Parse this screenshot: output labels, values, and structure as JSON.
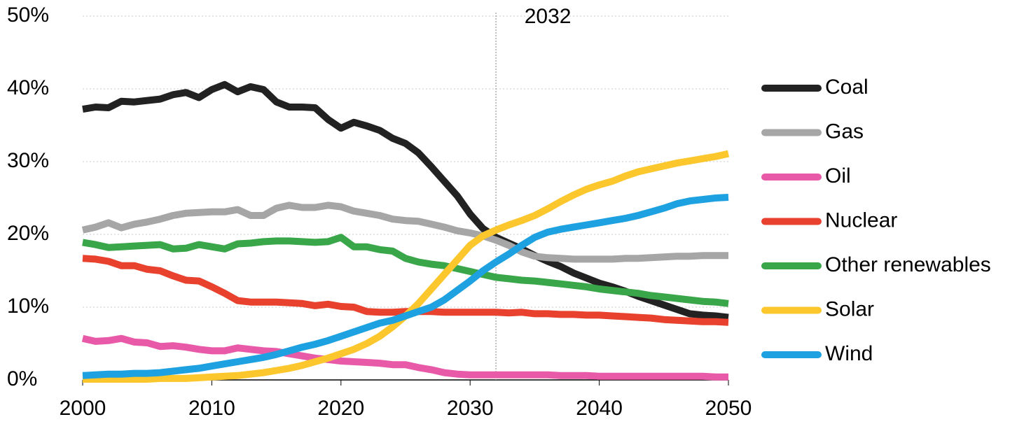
{
  "chart_data": {
    "type": "line",
    "x": [
      2000,
      2001,
      2002,
      2003,
      2004,
      2005,
      2006,
      2007,
      2008,
      2009,
      2010,
      2011,
      2012,
      2013,
      2014,
      2015,
      2016,
      2017,
      2018,
      2019,
      2020,
      2021,
      2022,
      2023,
      2024,
      2025,
      2026,
      2027,
      2028,
      2029,
      2030,
      2031,
      2032,
      2033,
      2034,
      2035,
      2036,
      2037,
      2038,
      2039,
      2040,
      2041,
      2042,
      2043,
      2044,
      2045,
      2046,
      2047,
      2048,
      2049,
      2050
    ],
    "series": [
      {
        "name": "Coal",
        "color": "#222222",
        "values": [
          37.2,
          37.5,
          37.4,
          38.3,
          38.2,
          38.4,
          38.6,
          39.2,
          39.5,
          38.8,
          39.9,
          40.6,
          39.6,
          40.3,
          39.9,
          38.2,
          37.5,
          37.5,
          37.4,
          35.8,
          34.6,
          35.4,
          34.9,
          34.3,
          33.2,
          32.5,
          31.2,
          29.3,
          27.3,
          25.3,
          22.8,
          20.8,
          19.6,
          18.8,
          18.0,
          17.1,
          16.3,
          15.6,
          14.7,
          14.0,
          13.3,
          12.8,
          12.2,
          11.5,
          10.9,
          10.3,
          9.7,
          9.1,
          8.9,
          8.8,
          8.6
        ]
      },
      {
        "name": "Gas",
        "color": "#a6a6a6",
        "values": [
          20.6,
          21.0,
          21.6,
          20.9,
          21.4,
          21.7,
          22.1,
          22.6,
          22.9,
          23.0,
          23.1,
          23.1,
          23.4,
          22.6,
          22.6,
          23.6,
          24.0,
          23.7,
          23.7,
          24.0,
          23.8,
          23.2,
          22.9,
          22.6,
          22.1,
          21.9,
          21.8,
          21.4,
          21.0,
          20.5,
          20.2,
          19.8,
          19.2,
          18.5,
          17.6,
          17.0,
          16.8,
          16.7,
          16.6,
          16.6,
          16.6,
          16.6,
          16.7,
          16.7,
          16.8,
          16.9,
          17.0,
          17.0,
          17.1,
          17.1,
          17.1
        ]
      },
      {
        "name": "Oil",
        "color": "#e85aa8",
        "values": [
          5.7,
          5.3,
          5.4,
          5.7,
          5.2,
          5.1,
          4.6,
          4.7,
          4.5,
          4.2,
          4.0,
          4.0,
          4.4,
          4.2,
          4.0,
          3.9,
          3.6,
          3.3,
          3.0,
          2.8,
          2.6,
          2.5,
          2.4,
          2.3,
          2.1,
          2.1,
          1.7,
          1.4,
          1.0,
          0.8,
          0.7,
          0.7,
          0.7,
          0.7,
          0.7,
          0.7,
          0.7,
          0.6,
          0.6,
          0.6,
          0.5,
          0.5,
          0.5,
          0.5,
          0.5,
          0.5,
          0.5,
          0.5,
          0.5,
          0.4,
          0.4
        ]
      },
      {
        "name": "Nuclear",
        "color": "#e8412e",
        "values": [
          16.7,
          16.6,
          16.3,
          15.7,
          15.7,
          15.2,
          15.0,
          14.3,
          13.7,
          13.6,
          12.8,
          11.9,
          10.9,
          10.7,
          10.7,
          10.7,
          10.6,
          10.5,
          10.2,
          10.4,
          10.1,
          10.0,
          9.4,
          9.3,
          9.3,
          9.4,
          9.4,
          9.4,
          9.3,
          9.3,
          9.3,
          9.3,
          9.3,
          9.2,
          9.3,
          9.1,
          9.1,
          9.0,
          9.0,
          8.9,
          8.9,
          8.8,
          8.7,
          8.6,
          8.5,
          8.3,
          8.2,
          8.1,
          8.0,
          8.0,
          7.9
        ]
      },
      {
        "name": "Other renewables",
        "color": "#3aa64a",
        "values": [
          18.9,
          18.6,
          18.2,
          18.3,
          18.4,
          18.5,
          18.6,
          18.0,
          18.1,
          18.6,
          18.3,
          18.0,
          18.7,
          18.8,
          19.0,
          19.1,
          19.1,
          19.0,
          18.9,
          19.0,
          19.6,
          18.3,
          18.3,
          17.9,
          17.7,
          16.7,
          16.2,
          15.9,
          15.7,
          15.3,
          14.9,
          14.5,
          14.1,
          13.9,
          13.7,
          13.6,
          13.4,
          13.2,
          13.0,
          12.8,
          12.5,
          12.3,
          12.1,
          11.9,
          11.6,
          11.4,
          11.2,
          11.0,
          10.8,
          10.7,
          10.5
        ]
      },
      {
        "name": "Solar",
        "color": "#fcc72c",
        "values": [
          0.1,
          0.1,
          0.1,
          0.1,
          0.1,
          0.1,
          0.2,
          0.2,
          0.2,
          0.3,
          0.4,
          0.5,
          0.6,
          0.8,
          1.0,
          1.3,
          1.6,
          2.0,
          2.5,
          3.0,
          3.6,
          4.2,
          5.0,
          6.0,
          7.3,
          8.8,
          10.5,
          12.5,
          14.5,
          16.5,
          18.5,
          19.8,
          20.6,
          21.3,
          21.9,
          22.6,
          23.5,
          24.5,
          25.4,
          26.2,
          26.8,
          27.3,
          28.0,
          28.6,
          29.0,
          29.4,
          29.8,
          30.1,
          30.4,
          30.7,
          31.1
        ]
      },
      {
        "name": "Wind",
        "color": "#1da1e0",
        "values": [
          0.6,
          0.7,
          0.8,
          0.8,
          0.9,
          0.9,
          1.0,
          1.2,
          1.4,
          1.6,
          1.9,
          2.2,
          2.5,
          2.8,
          3.1,
          3.5,
          4.0,
          4.5,
          4.9,
          5.4,
          6.0,
          6.6,
          7.2,
          7.8,
          8.2,
          8.8,
          9.4,
          10.0,
          11.0,
          12.3,
          13.6,
          15.0,
          16.2,
          17.3,
          18.5,
          19.6,
          20.3,
          20.7,
          21.0,
          21.3,
          21.6,
          21.9,
          22.2,
          22.6,
          23.1,
          23.6,
          24.2,
          24.6,
          24.8,
          25.0,
          25.1
        ]
      }
    ],
    "xlim": [
      2000,
      2050
    ],
    "xticks": [
      2000,
      2010,
      2020,
      2030,
      2040,
      2050
    ],
    "ylim": [
      0,
      50
    ],
    "yticks": [
      {
        "value": 0,
        "label": "0%"
      },
      {
        "value": 10,
        "label": "10%"
      },
      {
        "value": 20,
        "label": "20%"
      },
      {
        "value": 30,
        "label": "30%"
      },
      {
        "value": 40,
        "label": "40%"
      },
      {
        "value": 50,
        "label": "50%"
      }
    ],
    "grid": true,
    "legend": "right",
    "vline": 2032
  }
}
